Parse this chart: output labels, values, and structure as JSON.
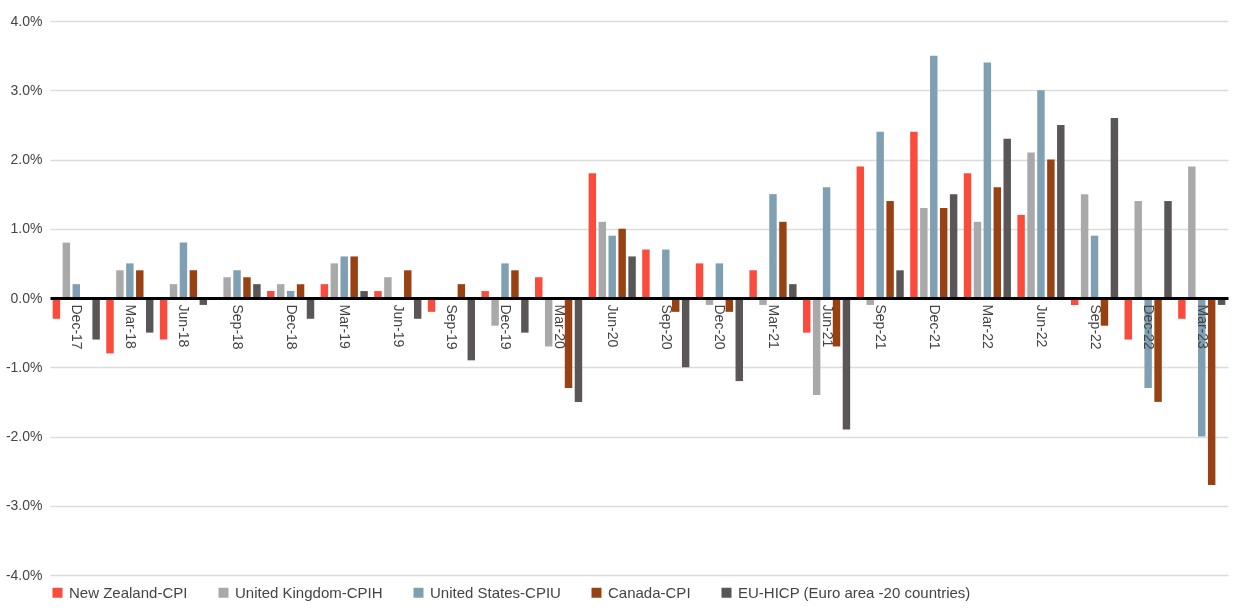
{
  "chart_data": {
    "type": "bar",
    "categories": [
      "Dec-17",
      "Mar-18",
      "Jun-18",
      "Sep-18",
      "Dec-18",
      "Mar-19",
      "Jun-19",
      "Sep-19",
      "Dec-19",
      "Mar-20",
      "Jun-20",
      "Sep-20",
      "Dec-20",
      "Mar-21",
      "Jun-21",
      "Sep-21",
      "Dec-21",
      "Mar-22",
      "Jun-22",
      "Sep-22",
      "Dec-22",
      "Mar-23"
    ],
    "series": [
      {
        "name": "New Zealand-CPI",
        "color": "#fa4b3c",
        "values": [
          -0.3,
          -0.8,
          -0.6,
          0,
          0.1,
          0.2,
          0.1,
          -0.2,
          0.1,
          0.3,
          1.8,
          0.7,
          0.5,
          0.4,
          -0.5,
          1.9,
          2.4,
          1.8,
          1.2,
          -0.1,
          -0.6,
          -0.3
        ]
      },
      {
        "name": "United Kingdom-CPIH",
        "color": "#a9a9a9",
        "values": [
          0.8,
          0.4,
          0.2,
          0.3,
          0.2,
          0.5,
          0.3,
          0,
          -0.4,
          -0.7,
          1.1,
          0,
          -0.1,
          -0.1,
          -1.4,
          -0.1,
          1.3,
          1.1,
          2.1,
          1.5,
          1.4,
          1.9
        ]
      },
      {
        "name": "United States-CPIU",
        "color": "#7fa0b2",
        "values": [
          0.2,
          0.5,
          0.8,
          0.4,
          0.1,
          0.6,
          0,
          0,
          0.5,
          null,
          0.9,
          0.7,
          0.5,
          1.5,
          1.6,
          2.4,
          3.5,
          3.4,
          3.0,
          0.9,
          -1.3,
          -2.0
        ]
      },
      {
        "name": "Canada-CPI",
        "color": "#984112",
        "values": [
          0,
          0.4,
          0.4,
          0.3,
          0.2,
          0.6,
          0.4,
          0.2,
          0.4,
          -1.3,
          1.0,
          -0.2,
          -0.2,
          1.1,
          -0.7,
          1.4,
          1.3,
          1.6,
          2.0,
          -0.4,
          -1.5,
          -2.7
        ]
      },
      {
        "name": "EU-HICP (Euro area -20 countries)",
        "color": "#5a5557",
        "values": [
          -0.6,
          -0.5,
          -0.1,
          0.2,
          -0.3,
          0.1,
          -0.3,
          -0.9,
          -0.5,
          -1.5,
          0.6,
          -1.0,
          -1.2,
          0.2,
          -1.9,
          0.4,
          1.5,
          2.3,
          2.5,
          2.6,
          1.4,
          -0.1
        ]
      }
    ],
    "ylim": [
      -4,
      4
    ],
    "yticks": [
      {
        "value": -4,
        "label": "-4.0%"
      },
      {
        "value": -3,
        "label": "-3.0%"
      },
      {
        "value": -2,
        "label": "-2.0%"
      },
      {
        "value": -1,
        "label": "-1.0%"
      },
      {
        "value": 0,
        "label": "0.0%"
      },
      {
        "value": 1,
        "label": "1.0%"
      },
      {
        "value": 2,
        "label": "2.0%"
      },
      {
        "value": 3,
        "label": "3.0%"
      },
      {
        "value": 4,
        "label": "4.0%"
      }
    ],
    "grid": "y",
    "legend": "bottom"
  }
}
